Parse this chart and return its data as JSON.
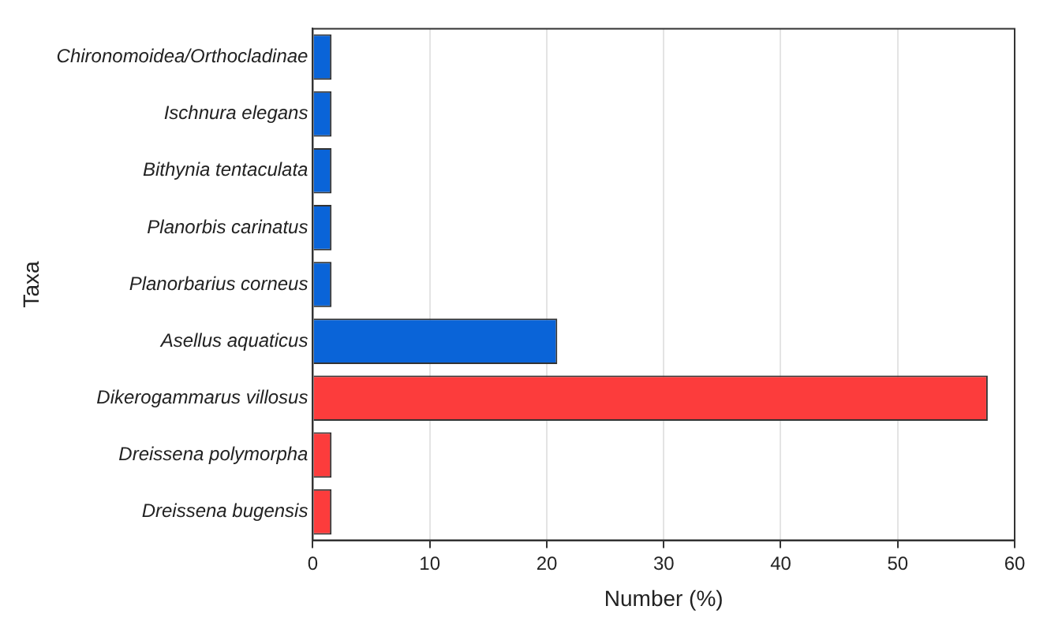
{
  "chart_data": {
    "type": "bar",
    "orientation": "horizontal",
    "xlabel": "Number (%)",
    "ylabel": "Taxa",
    "categories": [
      "Chironomoidea/Orthocladinae",
      "Ischnura elegans",
      "Bithynia tentaculata",
      "Planorbis carinatus",
      "Planorbarius corneus",
      "Asellus aquaticus",
      "Dikerogammarus villosus",
      "Dreissena polymorpha",
      "Dreissena bugensis"
    ],
    "values": [
      1.6,
      1.6,
      1.6,
      1.6,
      1.6,
      20.9,
      57.7,
      1.6,
      1.6
    ],
    "colors": [
      "#0a64d8",
      "#0a64d8",
      "#0a64d8",
      "#0a64d8",
      "#0a64d8",
      "#0a64d8",
      "#fc3c3c",
      "#fc3c3c",
      "#fc3c3c"
    ],
    "xlim": [
      0,
      60
    ],
    "xticks": [
      0,
      10,
      20,
      30,
      40,
      50,
      60
    ],
    "grid": "x"
  }
}
